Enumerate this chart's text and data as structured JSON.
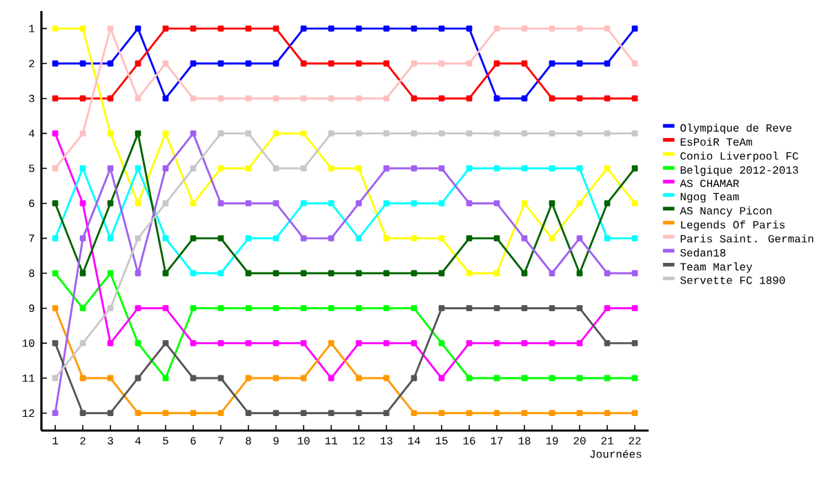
{
  "chart_data": {
    "type": "line",
    "xlabel": "Journées",
    "x": [
      1,
      2,
      3,
      4,
      5,
      6,
      7,
      8,
      9,
      10,
      11,
      12,
      13,
      14,
      15,
      16,
      17,
      18,
      19,
      20,
      21,
      22
    ],
    "xlim": [
      0.5,
      22.5
    ],
    "ylim": [
      12.5,
      0.5
    ],
    "xticks": [
      1,
      2,
      3,
      4,
      5,
      6,
      7,
      8,
      9,
      10,
      11,
      12,
      13,
      14,
      15,
      16,
      17,
      18,
      19,
      20,
      21,
      22
    ],
    "yticks": [
      1,
      2,
      3,
      4,
      5,
      6,
      7,
      8,
      9,
      10,
      11,
      12
    ],
    "legend": "right",
    "marker": "square",
    "line_style": "solid",
    "grid": false,
    "series": [
      {
        "name": "Olympique de Reve",
        "color": "#0000ff",
        "values": [
          2,
          2,
          2,
          1,
          3,
          2,
          2,
          2,
          2,
          1,
          1,
          1,
          1,
          1,
          1,
          1,
          3,
          3,
          2,
          2,
          2,
          1
        ]
      },
      {
        "name": "EsPoiR TeAm",
        "color": "#ff0000",
        "values": [
          3,
          3,
          3,
          2,
          1,
          1,
          1,
          1,
          1,
          2,
          2,
          2,
          2,
          3,
          3,
          3,
          2,
          2,
          3,
          3,
          3,
          3
        ]
      },
      {
        "name": "Conio Liverpool FC",
        "color": "#ffff00",
        "values": [
          1,
          1,
          4,
          6,
          4,
          6,
          5,
          5,
          4,
          4,
          5,
          5,
          7,
          7,
          7,
          8,
          8,
          6,
          7,
          6,
          5,
          6
        ]
      },
      {
        "name": "Belgique 2012-2013",
        "color": "#00ff00",
        "values": [
          8,
          9,
          8,
          10,
          11,
          9,
          9,
          9,
          9,
          9,
          9,
          9,
          9,
          9,
          10,
          11,
          11,
          11,
          11,
          11,
          11,
          11
        ]
      },
      {
        "name": "AS CHAMAR",
        "color": "#ff00ff",
        "values": [
          4,
          6,
          10,
          9,
          9,
          10,
          10,
          10,
          10,
          10,
          11,
          10,
          10,
          10,
          11,
          10,
          10,
          10,
          10,
          10,
          9,
          9
        ]
      },
      {
        "name": "Ngog Team",
        "color": "#00ffff",
        "values": [
          7,
          5,
          7,
          5,
          7,
          8,
          8,
          7,
          7,
          6,
          6,
          7,
          6,
          6,
          6,
          5,
          5,
          5,
          5,
          5,
          7,
          7
        ]
      },
      {
        "name": "AS Nancy Picon",
        "color": "#006400",
        "values": [
          6,
          8,
          6,
          4,
          8,
          7,
          7,
          8,
          8,
          8,
          8,
          8,
          8,
          8,
          8,
          7,
          7,
          8,
          6,
          8,
          6,
          5
        ]
      },
      {
        "name": "Legends Of Paris",
        "color": "#ff9900",
        "values": [
          9,
          11,
          11,
          12,
          12,
          12,
          12,
          11,
          11,
          11,
          10,
          11,
          11,
          12,
          12,
          12,
          12,
          12,
          12,
          12,
          12,
          12
        ]
      },
      {
        "name": "Paris Saint. Germain",
        "color": "#ffc0c0",
        "values": [
          5,
          4,
          1,
          3,
          2,
          3,
          3,
          3,
          3,
          3,
          3,
          3,
          3,
          2,
          2,
          2,
          1,
          1,
          1,
          1,
          1,
          2
        ]
      },
      {
        "name": "Sedan18",
        "color": "#a060f0",
        "values": [
          12,
          7,
          5,
          8,
          5,
          4,
          6,
          6,
          6,
          7,
          7,
          6,
          5,
          5,
          5,
          6,
          6,
          7,
          8,
          7,
          8,
          8
        ]
      },
      {
        "name": "Team Marley",
        "color": "#555555",
        "values": [
          10,
          12,
          12,
          11,
          10,
          11,
          11,
          12,
          12,
          12,
          12,
          12,
          12,
          11,
          9,
          9,
          9,
          9,
          9,
          9,
          10,
          10
        ]
      },
      {
        "name": "Servette FC 1890",
        "color": "#c8c8c8",
        "values": [
          11,
          10,
          9,
          7,
          6,
          5,
          4,
          4,
          5,
          5,
          4,
          4,
          4,
          4,
          4,
          4,
          4,
          4,
          4,
          4,
          4,
          4
        ]
      }
    ]
  }
}
